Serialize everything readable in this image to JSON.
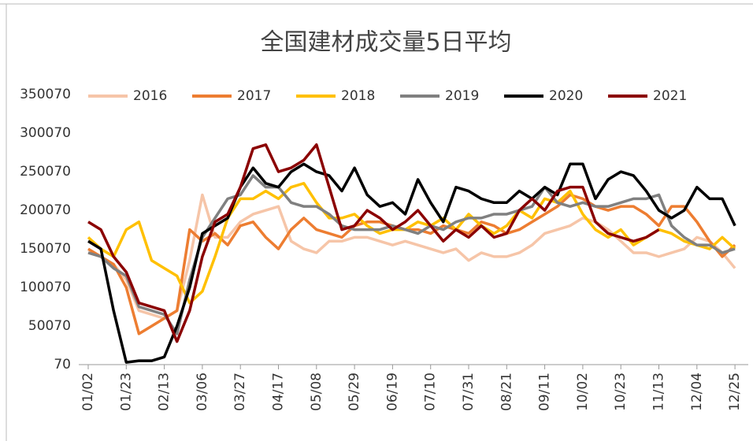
{
  "chart_data": {
    "type": "line",
    "title": "全国建材成交量5日平均",
    "categories": [
      "01/02",
      null,
      null,
      "01/23",
      null,
      null,
      "02/13",
      null,
      null,
      "03/06",
      null,
      null,
      "03/27",
      null,
      null,
      "04/17",
      null,
      null,
      "05/08",
      null,
      null,
      "05/29",
      null,
      null,
      "06/19",
      null,
      null,
      "07/10",
      null,
      null,
      "07/31",
      null,
      null,
      "08/21",
      null,
      null,
      "09/11",
      null,
      null,
      "10/02",
      null,
      null,
      "10/23",
      null,
      null,
      "11/13",
      null,
      null,
      "12/04",
      null,
      null,
      "12/25"
    ],
    "ylim": [
      70,
      350070
    ],
    "yticks": [
      70,
      50070,
      100070,
      150070,
      200070,
      250070,
      300070,
      350070
    ],
    "grid": false,
    "legend": "top",
    "series": [
      {
        "name": "2016",
        "color": "#f6c5a8",
        "values": [
          145000,
          140000,
          130000,
          110000,
          70000,
          65000,
          60000,
          70000,
          135000,
          220000,
          165000,
          165000,
          185000,
          195000,
          200000,
          205000,
          160000,
          150000,
          145000,
          160000,
          160000,
          165000,
          165000,
          160000,
          155000,
          160000,
          155000,
          150000,
          145000,
          150000,
          135000,
          145000,
          140000,
          140000,
          145000,
          155000,
          170000,
          175000,
          180000,
          190000,
          185000,
          175000,
          160000,
          145000,
          145000,
          140000,
          145000,
          150000,
          165000,
          160000,
          145000,
          125000
        ]
      },
      {
        "name": "2017",
        "color": "#ed7d31",
        "values": [
          150000,
          140000,
          130000,
          100000,
          40000,
          50000,
          60000,
          70000,
          175000,
          160000,
          170000,
          155000,
          180000,
          185000,
          165000,
          150000,
          175000,
          190000,
          175000,
          170000,
          165000,
          180000,
          185000,
          185000,
          180000,
          175000,
          175000,
          170000,
          180000,
          175000,
          170000,
          185000,
          180000,
          170000,
          175000,
          185000,
          195000,
          205000,
          220000,
          215000,
          205000,
          200000,
          205000,
          205000,
          195000,
          180000,
          205000,
          205000,
          185000,
          160000,
          140000,
          155000
        ]
      },
      {
        "name": "2018",
        "color": "#ffc000",
        "values": [
          165000,
          150000,
          140000,
          175000,
          185000,
          135000,
          125000,
          115000,
          80000,
          95000,
          140000,
          190000,
          215000,
          215000,
          225000,
          215000,
          230000,
          235000,
          210000,
          190000,
          190000,
          195000,
          180000,
          170000,
          175000,
          175000,
          185000,
          180000,
          190000,
          175000,
          195000,
          180000,
          170000,
          180000,
          200000,
          190000,
          215000,
          210000,
          225000,
          195000,
          175000,
          165000,
          175000,
          155000,
          165000,
          175000,
          170000,
          160000,
          155000,
          150000,
          165000,
          150000
        ]
      },
      {
        "name": "2019",
        "color": "#808080",
        "values": [
          145000,
          140000,
          125000,
          115000,
          75000,
          70000,
          65000,
          40000,
          110000,
          165000,
          190000,
          215000,
          220000,
          245000,
          230000,
          230000,
          210000,
          205000,
          205000,
          195000,
          180000,
          175000,
          175000,
          175000,
          180000,
          175000,
          170000,
          180000,
          175000,
          185000,
          190000,
          190000,
          195000,
          195000,
          200000,
          205000,
          230000,
          210000,
          205000,
          210000,
          205000,
          205000,
          210000,
          215000,
          215000,
          220000,
          180000,
          165000,
          155000,
          155000,
          145000,
          150000
        ]
      },
      {
        "name": "2020",
        "color": "#000000",
        "values": [
          160000,
          150000,
          70000,
          3000,
          5000,
          5000,
          10000,
          50000,
          100000,
          170000,
          180000,
          190000,
          230000,
          255000,
          235000,
          230000,
          250000,
          260000,
          250000,
          245000,
          225000,
          255000,
          220000,
          205000,
          210000,
          195000,
          240000,
          210000,
          185000,
          230000,
          225000,
          215000,
          210000,
          210000,
          225000,
          215000,
          230000,
          220000,
          260000,
          260000,
          215000,
          240000,
          250000,
          245000,
          225000,
          200000,
          190000,
          200000,
          230000,
          215000,
          215000,
          180000
        ]
      },
      {
        "name": "2021",
        "color": "#8b0000",
        "values": [
          185000,
          175000,
          140000,
          120000,
          80000,
          75000,
          70000,
          30000,
          70000,
          140000,
          185000,
          195000,
          230000,
          280000,
          285000,
          250000,
          255000,
          265000,
          285000,
          230000,
          175000,
          180000,
          200000,
          190000,
          175000,
          185000,
          200000,
          180000,
          160000,
          175000,
          165000,
          180000,
          165000,
          170000,
          200000,
          215000,
          200000,
          225000,
          230000,
          230000,
          185000,
          170000,
          165000,
          160000,
          165000,
          175000,
          null,
          null,
          null,
          null,
          null,
          null
        ]
      }
    ]
  }
}
